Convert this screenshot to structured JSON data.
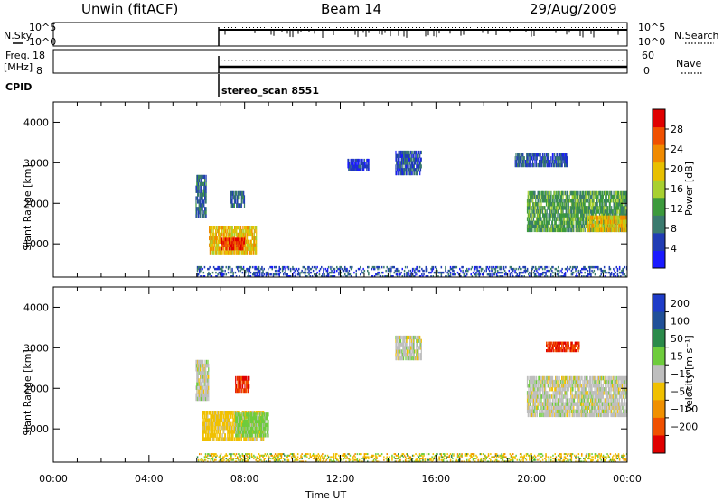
{
  "header": {
    "left": "Unwin (fitACF)",
    "center": "Beam 14",
    "right": "29/Aug/2009"
  },
  "status_panels": {
    "nsky": {
      "left_label": "N.Sky",
      "left_ticks": [
        "10^5",
        "10^0"
      ],
      "right_label": "N.Search",
      "right_ticks": [
        "10^5",
        "10^0"
      ]
    },
    "freq": {
      "left_label_line1": "Freq.",
      "left_label_line2": "[MHz]",
      "left_ticks": [
        "18",
        "8"
      ],
      "right_label": "Nave",
      "right_ticks": [
        "60",
        "0"
      ]
    },
    "cpid": {
      "label": "CPID",
      "text": "stereo_scan 8551"
    }
  },
  "chart_data": [
    {
      "type": "heatmap",
      "title": "",
      "xlabel": "",
      "ylabel": "Slant Range [km]",
      "xlim": [
        "00:00",
        "24:00"
      ],
      "ylim": [
        180,
        4500
      ],
      "yticks": [
        1000,
        2000,
        3000,
        4000
      ],
      "colorbar": {
        "label": "Power [dB]",
        "ticks": [
          4,
          8,
          12,
          16,
          20,
          24,
          28
        ],
        "range": [
          0,
          32
        ],
        "colors": [
          "#1a1aff",
          "#203cb4",
          "#3a7a6e",
          "#3c9a3c",
          "#a8d030",
          "#e8c000",
          "#f08a00",
          "#f05000",
          "#e00000"
        ]
      },
      "regions": [
        {
          "t0": 5.95,
          "t1": 6.4,
          "r0": 1650,
          "r1": 2700,
          "level": 8
        },
        {
          "t0": 6.5,
          "t1": 8.5,
          "r0": 750,
          "r1": 1450,
          "level": 20
        },
        {
          "t0": 7.0,
          "t1": 8.0,
          "r0": 850,
          "r1": 1150,
          "level": 28
        },
        {
          "t0": 7.4,
          "t1": 8.0,
          "r0": 1900,
          "r1": 2300,
          "level": 8
        },
        {
          "t0": 12.3,
          "t1": 13.2,
          "r0": 2800,
          "r1": 3100,
          "level": 4
        },
        {
          "t0": 14.3,
          "t1": 15.4,
          "r0": 2700,
          "r1": 3300,
          "level": 6
        },
        {
          "t0": 19.3,
          "t1": 21.5,
          "r0": 2900,
          "r1": 3250,
          "level": 6
        },
        {
          "t0": 19.8,
          "t1": 24.0,
          "r0": 1300,
          "r1": 2300,
          "level": 12
        },
        {
          "t0": 22.3,
          "t1": 24.0,
          "r0": 1300,
          "r1": 1700,
          "level": 20
        },
        {
          "t0": 6.0,
          "t1": 24.0,
          "r0": 180,
          "r1": 450,
          "level": 6
        }
      ]
    },
    {
      "type": "heatmap",
      "title": "",
      "xlabel": "Time UT",
      "ylabel": "Slant Range [km]",
      "xticks": [
        "00:00",
        "04:00",
        "08:00",
        "12:00",
        "16:00",
        "20:00",
        "00:00"
      ],
      "xlim": [
        "00:00",
        "24:00"
      ],
      "ylim": [
        180,
        4500
      ],
      "yticks": [
        1000,
        2000,
        3000,
        4000
      ],
      "colorbar": {
        "label": "Velocity [m s⁻¹]",
        "ticks": [
          200,
          100,
          50,
          15,
          -15,
          -50,
          -100,
          -200
        ],
        "colors": [
          "#1e3cc8",
          "#205098",
          "#2a8a4a",
          "#6ecc3c",
          "#bebebe",
          "#f0c000",
          "#f09000",
          "#f05000",
          "#e00000"
        ]
      },
      "regions": [
        {
          "t0": 5.95,
          "t1": 6.5,
          "r0": 1700,
          "r1": 2700,
          "level": 0
        },
        {
          "t0": 6.2,
          "t1": 8.8,
          "r0": 700,
          "r1": 1450,
          "level": -30
        },
        {
          "t0": 7.6,
          "t1": 9.0,
          "r0": 800,
          "r1": 1400,
          "level": 30
        },
        {
          "t0": 7.6,
          "t1": 8.2,
          "r0": 1900,
          "r1": 2300,
          "level": -200
        },
        {
          "t0": 14.3,
          "t1": 15.4,
          "r0": 2700,
          "r1": 3300,
          "level": 0
        },
        {
          "t0": 20.6,
          "t1": 22.0,
          "r0": 2900,
          "r1": 3150,
          "level": -200
        },
        {
          "t0": 19.8,
          "t1": 24.0,
          "r0": 1300,
          "r1": 2300,
          "level": 0
        },
        {
          "t0": 6.0,
          "t1": 24.0,
          "r0": 180,
          "r1": 400,
          "level": -15
        }
      ]
    }
  ]
}
